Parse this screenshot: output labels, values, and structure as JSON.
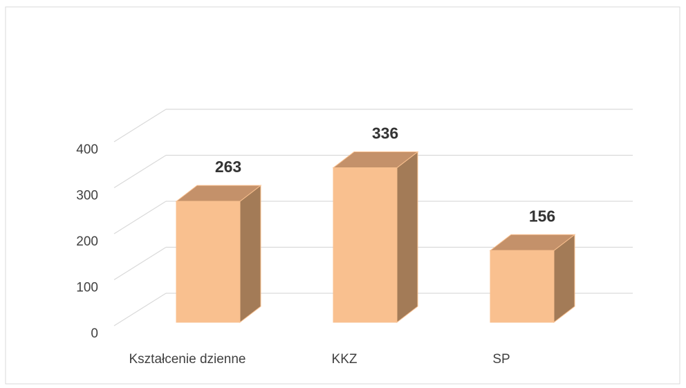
{
  "chart_data": {
    "type": "bar3d",
    "categories": [
      "Kształcenie dzienne",
      "KKZ",
      "SP"
    ],
    "values": [
      263,
      336,
      156
    ],
    "color": "#f9c08f",
    "top_color": "#c4916a",
    "side_color": "#a37b57",
    "ylim": [
      0,
      400
    ],
    "yticks": [
      0,
      100,
      200,
      300,
      400
    ],
    "grid": true
  }
}
